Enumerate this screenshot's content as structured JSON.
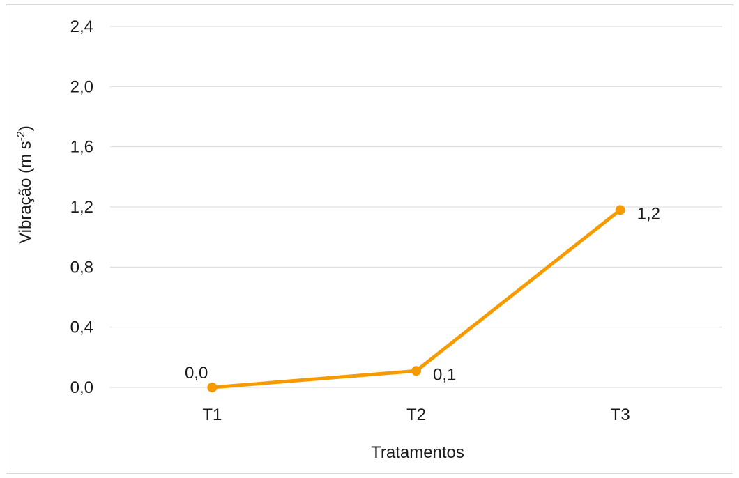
{
  "chart_data": {
    "type": "line",
    "categories": [
      "T1",
      "T2",
      "T3"
    ],
    "series": [
      {
        "values": [
          0.0,
          0.11,
          1.18
        ],
        "labels": [
          "0,0",
          "0,1",
          "1,2"
        ],
        "color": "#f59b00"
      }
    ],
    "title": "",
    "xlabel": "Tratamentos",
    "ylabel": {
      "main": "Vibração (m s",
      "superscript": "-2",
      "close": ")"
    },
    "ylim": [
      0,
      2.4
    ],
    "yticks": [
      0,
      0.4,
      0.8,
      1.2,
      1.6,
      2.0,
      2.4
    ],
    "ytick_labels": [
      "0,0",
      "0,4",
      "0,8",
      "1,2",
      "1,6",
      "2,0",
      "2,4"
    ],
    "grid": true,
    "gridline_color": "#d9d9d9",
    "legend": "none"
  }
}
